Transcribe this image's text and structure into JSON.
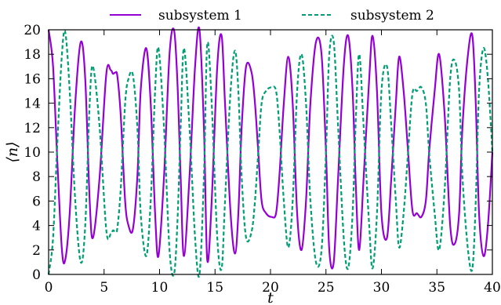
{
  "chart_data": {
    "type": "line",
    "title": "",
    "xlabel": "t",
    "ylabel": "⟨n⟩",
    "xlim": [
      0,
      40
    ],
    "ylim": [
      0,
      20
    ],
    "xticks": [
      0,
      5,
      10,
      15,
      20,
      25,
      30,
      35,
      40
    ],
    "yticks": [
      0,
      2,
      4,
      6,
      8,
      10,
      12,
      14,
      16,
      18,
      20
    ],
    "grid": false,
    "legend_position": "top-center, above plot",
    "series": [
      {
        "name": "subsystem 1",
        "color": "#9400d3",
        "style": "solid",
        "x": [
          0,
          0.4,
          0.8,
          1.2,
          1.5,
          1.9,
          2.4,
          2.9,
          3.3,
          3.7,
          4.0,
          4.6,
          5.2,
          5.6,
          5.8,
          6.0,
          6.2,
          6.5,
          6.9,
          7.2,
          7.6,
          8.0,
          8.3,
          8.8,
          9.2,
          9.6,
          9.9,
          10.4,
          10.9,
          11.3,
          11.6,
          11.9,
          12.2,
          12.7,
          13.2,
          13.6,
          14.0,
          14.3,
          14.7,
          15.2,
          15.6,
          15.9,
          16.4,
          16.8,
          17.1,
          17.4,
          17.8,
          18.3,
          18.6,
          18.9,
          19.2,
          19.6,
          20.1,
          20.5,
          20.8,
          21.2,
          21.6,
          22.0,
          22.4,
          22.8,
          23.2,
          23.6,
          24.1,
          24.6,
          25.0,
          25.3,
          25.7,
          26.1,
          26.6,
          27.0,
          27.4,
          27.7,
          28.0,
          28.4,
          28.9,
          29.2,
          29.6,
          30.0,
          30.5,
          30.9,
          31.3,
          31.6,
          32.0,
          32.4,
          32.8,
          33.2,
          33.6,
          34.0,
          34.3,
          34.8,
          35.2,
          35.7,
          36.2,
          36.6,
          37.0,
          37.3,
          37.8,
          38.2,
          38.5,
          38.8,
          39.2,
          39.6,
          40.0
        ],
        "values": [
          20,
          17,
          9,
          2,
          1.2,
          5,
          14,
          19,
          16,
          6,
          3,
          8,
          16.4,
          16.7,
          16.4,
          16.5,
          16.2,
          13,
          6,
          4,
          3.7,
          8,
          15,
          18.5,
          14,
          5,
          1.5,
          8,
          18,
          20,
          16,
          8,
          1.5,
          8,
          17,
          20,
          12,
          1.2,
          6,
          17,
          19.5,
          14,
          5,
          1.7,
          5,
          12,
          17,
          16.5,
          14,
          10,
          6,
          5,
          4.7,
          5,
          8,
          14,
          17.8,
          14,
          5,
          2,
          6,
          14,
          19,
          18,
          10,
          2,
          1,
          8,
          17,
          19.5,
          15,
          7,
          2,
          8,
          16,
          19.5,
          15,
          5,
          3,
          8,
          14,
          17.8,
          15,
          10,
          5.2,
          5,
          4.7,
          6,
          10,
          15,
          18,
          13,
          4,
          2.5,
          5,
          12,
          18,
          19.5,
          14,
          5,
          1.5,
          4,
          10
        ]
      },
      {
        "name": "subsystem 2",
        "color": "#009e73",
        "style": "dashed",
        "x": [
          0,
          0.4,
          0.8,
          1.2,
          1.5,
          1.9,
          2.4,
          2.9,
          3.3,
          3.7,
          4.0,
          4.6,
          5.2,
          5.6,
          5.8,
          6.0,
          6.2,
          6.5,
          6.9,
          7.2,
          7.6,
          8.0,
          8.3,
          8.8,
          9.2,
          9.6,
          9.9,
          10.4,
          10.9,
          11.3,
          11.6,
          11.9,
          12.2,
          12.7,
          13.2,
          13.6,
          14.0,
          14.3,
          14.7,
          15.2,
          15.6,
          15.9,
          16.4,
          16.8,
          17.1,
          17.4,
          17.8,
          18.3,
          18.6,
          18.9,
          19.2,
          19.6,
          20.1,
          20.5,
          20.8,
          21.2,
          21.6,
          22.0,
          22.4,
          22.8,
          23.2,
          23.6,
          24.1,
          24.6,
          25.0,
          25.3,
          25.7,
          26.1,
          26.6,
          27.0,
          27.4,
          27.7,
          28.0,
          28.4,
          28.9,
          29.2,
          29.6,
          30.0,
          30.5,
          30.9,
          31.3,
          31.6,
          32.0,
          32.4,
          32.8,
          33.2,
          33.6,
          34.0,
          34.3,
          34.8,
          35.2,
          35.7,
          36.2,
          36.6,
          37.0,
          37.3,
          37.8,
          38.2,
          38.5,
          38.8,
          39.2,
          39.6,
          40.0
        ],
        "values": [
          0,
          3,
          11,
          18,
          19.8,
          15,
          6,
          1,
          4,
          14,
          17,
          12,
          3.6,
          3.3,
          3.6,
          3.5,
          3.8,
          7,
          14,
          16,
          16.3,
          12,
          5,
          1.5,
          6,
          15,
          18.5,
          12,
          2,
          0,
          4,
          12,
          18.5,
          12,
          3,
          0,
          8,
          18.8,
          14,
          3,
          0.5,
          6,
          15,
          18.3,
          15,
          8,
          3,
          3.5,
          6,
          10,
          14,
          15,
          15.3,
          15,
          12,
          6,
          2.2,
          6,
          15,
          18,
          14,
          6,
          1,
          2,
          10,
          18,
          19,
          12,
          3,
          0.5,
          5,
          13,
          18,
          12,
          4,
          0.5,
          5,
          15,
          17,
          12,
          6,
          2.2,
          5,
          10,
          14.8,
          15,
          15.3,
          14,
          10,
          5,
          2,
          7,
          16,
          17.5,
          15,
          8,
          2,
          0.5,
          6,
          15,
          18.5,
          16,
          10
        ]
      }
    ]
  }
}
